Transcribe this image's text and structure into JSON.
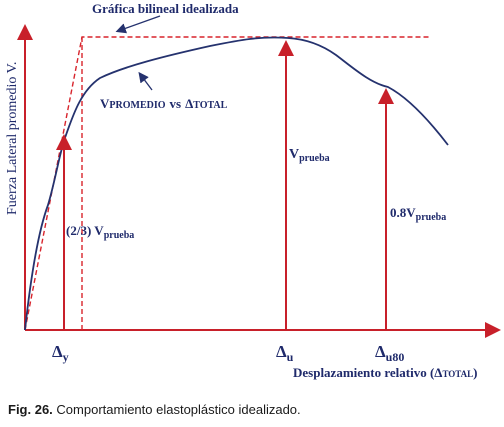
{
  "diagram": {
    "bilinear_title": "Gráfica bilineal idealizada",
    "y_axis_title": "Fuerza Lateral promedio V.",
    "curve_label": {
      "v_prefix": "V",
      "v_sub": "PROMEDIO",
      "vs": "vs",
      "delta_sym": "Δ",
      "delta_sub": "TOTAL"
    },
    "v_prueba": {
      "main": "V",
      "sub": "prueba"
    },
    "two_thirds": {
      "prefix": "(2/3) V",
      "sub": "prueba"
    },
    "zero_eight": {
      "prefix": "0.8V",
      "sub": "prueba"
    },
    "x_ticks": [
      {
        "sym": "Δ",
        "sub": "y"
      },
      {
        "sym": "Δ",
        "sub": "u"
      },
      {
        "sym": "Δ",
        "sub": "u80"
      }
    ],
    "x_axis_title": {
      "text": "Desplazamiento relativo (Δ",
      "sub": "TOTAL",
      "close": ")"
    },
    "colors": {
      "axis": "#c8202a",
      "curve": "#25326e",
      "text": "#1f2a6b"
    }
  },
  "caption": {
    "label": "Fig. 26.",
    "text": " Comportamiento elastoplástico idealizado."
  }
}
